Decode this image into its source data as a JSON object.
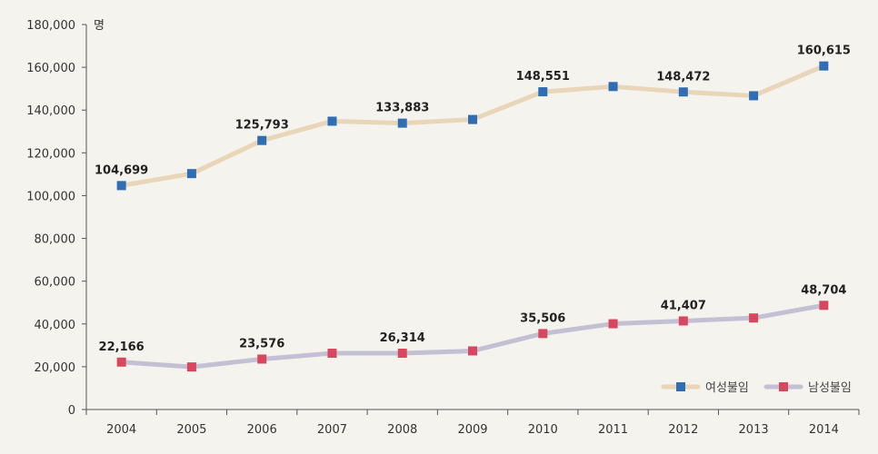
{
  "chart_data": {
    "type": "line",
    "title": "",
    "xlabel": "",
    "ylabel": "",
    "unit_label": "명",
    "ylim": [
      0,
      180000
    ],
    "y_ticks": [
      0,
      20000,
      40000,
      60000,
      80000,
      100000,
      120000,
      140000,
      160000,
      180000
    ],
    "y_tick_labels": [
      "0",
      "20,000",
      "40,000",
      "60,000",
      "80,000",
      "100,000",
      "120,000",
      "140,000",
      "160,000",
      "180,000"
    ],
    "categories": [
      "2004",
      "2005",
      "2006",
      "2007",
      "2008",
      "2009",
      "2010",
      "2011",
      "2012",
      "2013",
      "2014"
    ],
    "legend_position": "bottom-right",
    "series": [
      {
        "name": "여성불임",
        "line_color": "#e9d6b8",
        "marker_color": "#2f6db5",
        "values": [
          104699,
          110300,
          125793,
          134800,
          133883,
          135600,
          148551,
          151000,
          148472,
          146700,
          160615
        ],
        "labels": [
          "104,699",
          "",
          "125,793",
          "",
          "133,883",
          "",
          "148,551",
          "",
          "148,472",
          "",
          "160,615"
        ]
      },
      {
        "name": "남성불임",
        "line_color": "#c3c0d4",
        "marker_color": "#d9475e",
        "values": [
          22166,
          19900,
          23576,
          26314,
          26314,
          27400,
          35506,
          40100,
          41407,
          42800,
          48704
        ],
        "labels": [
          "22,166",
          "",
          "23,576",
          "",
          "26,314",
          "",
          "35,506",
          "",
          "41,407",
          "",
          "48,704"
        ]
      }
    ]
  }
}
